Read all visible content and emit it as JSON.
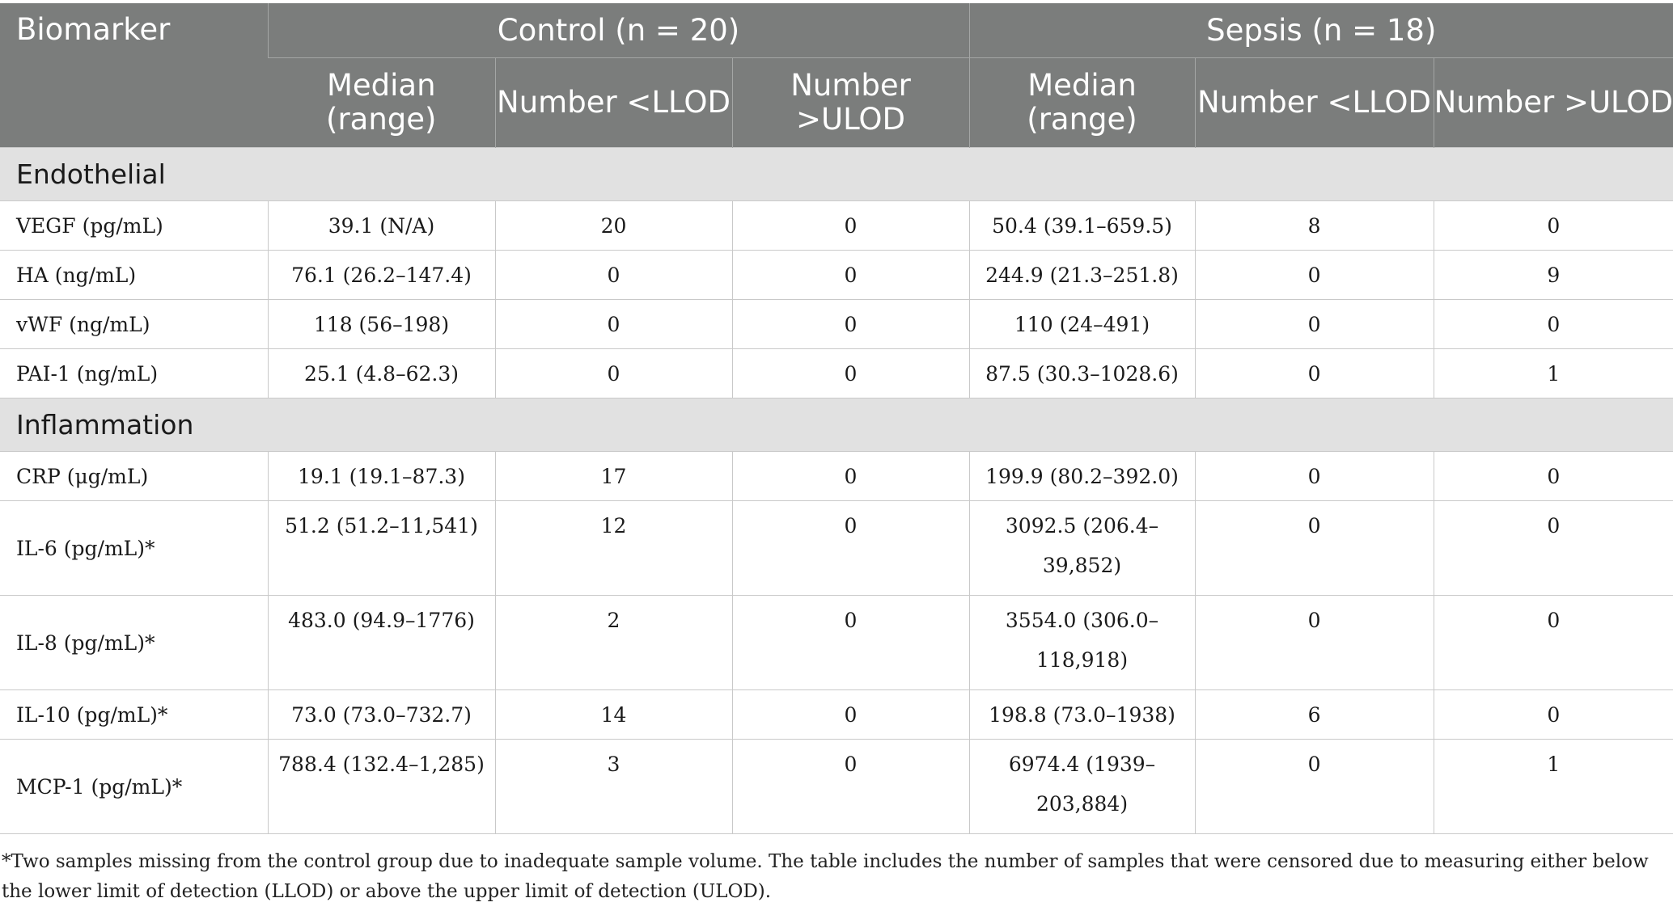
{
  "header": {
    "biomarker": "Biomarker",
    "groups": [
      "Control (n = 20)",
      "Sepsis (n = 18)"
    ],
    "subcols": [
      "Median (range)",
      "Number <LLOD",
      "Number >ULOD",
      "Median (range)",
      "Number <LLOD",
      "Number >ULOD"
    ]
  },
  "sections": [
    {
      "name": "Endothelial",
      "rows": [
        [
          "VEGF (pg/mL)",
          "39.1 (N/A)",
          "20",
          "0",
          "50.4 (39.1–659.5)",
          "8",
          "0"
        ],
        [
          "HA (ng/mL)",
          "76.1 (26.2–147.4)",
          "0",
          "0",
          "244.9 (21.3–251.8)",
          "0",
          "9"
        ],
        [
          "vWF (ng/mL)",
          "118 (56–198)",
          "0",
          "0",
          "110 (24–491)",
          "0",
          "0"
        ],
        [
          "PAI-1 (ng/mL)",
          "25.1 (4.8–62.3)",
          "0",
          "0",
          "87.5 (30.3–1028.6)",
          "0",
          "1"
        ]
      ]
    },
    {
      "name": "Inflammation",
      "rows": [
        [
          "CRP (μg/mL)",
          "19.1 (19.1–87.3)",
          "17",
          "0",
          "199.9 (80.2–392.0)",
          "0",
          "0"
        ],
        [
          "IL-6 (pg/mL)*",
          "51.2 (51.2–11,541)",
          "12",
          "0",
          "3092.5 (206.4–39,852)",
          "0",
          "0"
        ],
        [
          "IL-8 (pg/mL)*",
          "483.0 (94.9–1776)",
          "2",
          "0",
          "3554.0 (306.0–118,918)",
          "0",
          "0"
        ],
        [
          "IL-10 (pg/mL)*",
          "73.0 (73.0–732.7)",
          "14",
          "0",
          "198.8 (73.0–1938)",
          "6",
          "0"
        ],
        [
          "MCP-1 (pg/mL)*",
          "788.4 (132.4–1,285)",
          "3",
          "0",
          "6974.4 (1939–203,884)",
          "0",
          "1"
        ]
      ]
    }
  ],
  "footnote": "*Two samples missing from the control group due to inadequate sample volume. The table includes the number of samples that were censored due to measuring either below the lower limit of detection (LLOD) or above the upper limit of detection (ULOD)."
}
